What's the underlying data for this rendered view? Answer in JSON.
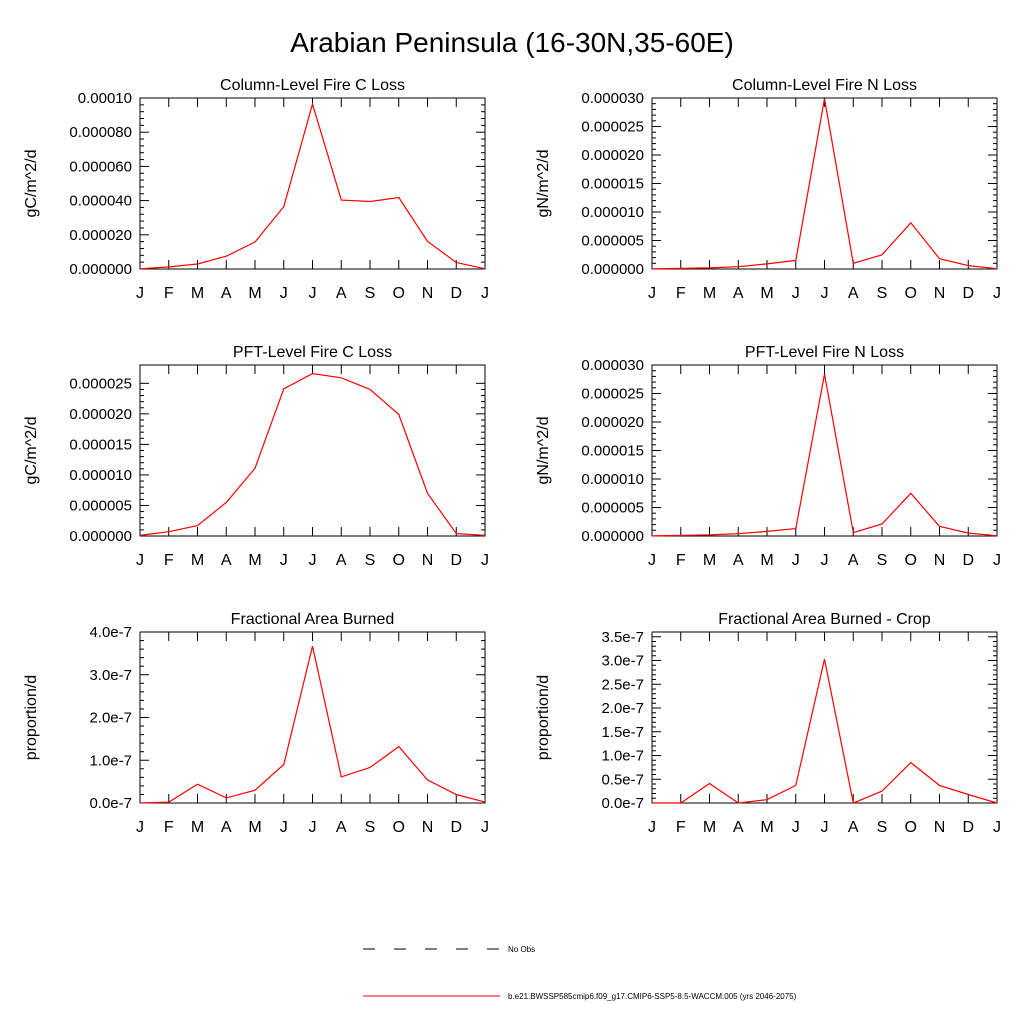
{
  "figure": {
    "title": "Arabian Peninsula (16-30N,35-60E)"
  },
  "legend": {
    "entries": [
      {
        "label": "No Obs",
        "color": "#000000",
        "style": "dashed"
      },
      {
        "label": "b.e21.BWSSP585cmip6.f09_g17.CMIP6-SSP5-8.5-WACCM.005 (yrs 2046-2075)",
        "color": "#ff0000",
        "style": "solid"
      }
    ]
  },
  "chart_data": [
    {
      "type": "line",
      "title": "Column-Level Fire C Loss",
      "ylabel": "gC/m^2/d",
      "x": [
        "J",
        "F",
        "M",
        "A",
        "M",
        "J",
        "J",
        "A",
        "S",
        "O",
        "N",
        "D",
        "J"
      ],
      "ylim": [
        0,
        0.0001
      ],
      "yticks": [
        0,
        2e-05,
        4e-05,
        6e-05,
        8e-05,
        0.0001
      ],
      "ytick_labels": [
        "0.000000",
        "0.000020",
        "0.000040",
        "0.000060",
        "0.000080",
        "0.00010"
      ],
      "series": [
        {
          "color": "#ff0000",
          "values": [
            1e-07,
            1.2e-06,
            2.9e-06,
            7.5e-06,
            1.58e-05,
            3.65e-05,
            9.65e-05,
            4.03e-05,
            3.95e-05,
            4.18e-05,
            1.62e-05,
            3.8e-06,
            1e-07
          ]
        }
      ]
    },
    {
      "type": "line",
      "title": "Column-Level Fire N Loss",
      "ylabel": "gN/m^2/d",
      "x": [
        "J",
        "F",
        "M",
        "A",
        "M",
        "J",
        "J",
        "A",
        "S",
        "O",
        "N",
        "D",
        "J"
      ],
      "ylim": [
        0,
        3e-05
      ],
      "yticks": [
        0,
        5e-06,
        1e-05,
        1.5e-05,
        2e-05,
        2.5e-05,
        3e-05
      ],
      "ytick_labels": [
        "0.000000",
        "0.000005",
        "0.000010",
        "0.000015",
        "0.000020",
        "0.000025",
        "0.000030"
      ],
      "series": [
        {
          "color": "#ff0000",
          "values": [
            2e-08,
            1e-07,
            2e-07,
            4e-07,
            9e-07,
            1.5e-06,
            2.99e-05,
            1e-06,
            2.5e-06,
            8.1e-06,
            1.8e-06,
            6e-07,
            5e-08
          ]
        }
      ]
    },
    {
      "type": "line",
      "title": "PFT-Level Fire C Loss",
      "ylabel": "gC/m^2/d",
      "x": [
        "J",
        "F",
        "M",
        "A",
        "M",
        "J",
        "J",
        "A",
        "S",
        "O",
        "N",
        "D",
        "J"
      ],
      "ylim": [
        0,
        2.8e-05
      ],
      "yticks": [
        0,
        5e-06,
        1e-05,
        1.5e-05,
        2e-05,
        2.5e-05
      ],
      "ytick_labels": [
        "0.000000",
        "0.000005",
        "0.000010",
        "0.000015",
        "0.000020",
        "0.000025"
      ],
      "series": [
        {
          "color": "#ff0000",
          "values": [
            1e-07,
            7e-07,
            1.7e-06,
            5.5e-06,
            1.11e-05,
            2.41e-05,
            2.66e-05,
            2.59e-05,
            2.4e-05,
            1.99e-05,
            7e-06,
            4e-07,
            1e-07
          ]
        }
      ]
    },
    {
      "type": "line",
      "title": "PFT-Level Fire N Loss",
      "ylabel": "gN/m^2/d",
      "x": [
        "J",
        "F",
        "M",
        "A",
        "M",
        "J",
        "J",
        "A",
        "S",
        "O",
        "N",
        "D",
        "J"
      ],
      "ylim": [
        0,
        3e-05
      ],
      "yticks": [
        0,
        5e-06,
        1e-05,
        1.5e-05,
        2e-05,
        2.5e-05,
        3e-05
      ],
      "ytick_labels": [
        "0.000000",
        "0.000005",
        "0.000010",
        "0.000015",
        "0.000020",
        "0.000025",
        "0.000030"
      ],
      "series": [
        {
          "color": "#ff0000",
          "values": [
            2e-08,
            1e-07,
            2e-07,
            4e-07,
            8e-07,
            1.3e-06,
            2.84e-05,
            6e-07,
            2.1e-06,
            7.5e-06,
            1.7e-06,
            5e-07,
            5e-08
          ]
        }
      ]
    },
    {
      "type": "line",
      "title": "Fractional Area Burned",
      "ylabel": "proportion/d",
      "x": [
        "J",
        "F",
        "M",
        "A",
        "M",
        "J",
        "J",
        "A",
        "S",
        "O",
        "N",
        "D",
        "J"
      ],
      "ylim": [
        0,
        4e-07
      ],
      "yticks": [
        0,
        1e-07,
        2e-07,
        3e-07,
        4e-07
      ],
      "ytick_labels": [
        "0.0e-7",
        "1.0e-7",
        "2.0e-7",
        "3.0e-7",
        "4.0e-7"
      ],
      "series": [
        {
          "color": "#ff0000",
          "values": [
            0.0,
            2e-09,
            4.4e-08,
            1.2e-08,
            3e-08,
            9e-08,
            3.67e-07,
            6.1e-08,
            8.3e-08,
            1.32e-07,
            5.4e-08,
            2e-08,
            2e-09
          ]
        }
      ]
    },
    {
      "type": "line",
      "title": "Fractional Area Burned - Crop",
      "ylabel": "proportion/d",
      "x": [
        "J",
        "F",
        "M",
        "A",
        "M",
        "J",
        "J",
        "A",
        "S",
        "O",
        "N",
        "D",
        "J"
      ],
      "ylim": [
        0,
        3.6e-07
      ],
      "yticks": [
        0,
        5e-08,
        1e-07,
        1.5e-07,
        2e-07,
        2.5e-07,
        3e-07,
        3.5e-07
      ],
      "ytick_labels": [
        "0.0e-7",
        "0.5e-7",
        "1.0e-7",
        "1.5e-7",
        "2.0e-7",
        "2.5e-7",
        "3.0e-7",
        "3.5e-7"
      ],
      "series": [
        {
          "color": "#ff0000",
          "values": [
            0.0,
            0.0,
            4.1e-08,
            0.0,
            7e-09,
            3.7e-08,
            3.03e-07,
            0.0,
            2.5e-08,
            8.5e-08,
            3.7e-08,
            1.8e-08,
            0.0
          ]
        }
      ]
    }
  ]
}
